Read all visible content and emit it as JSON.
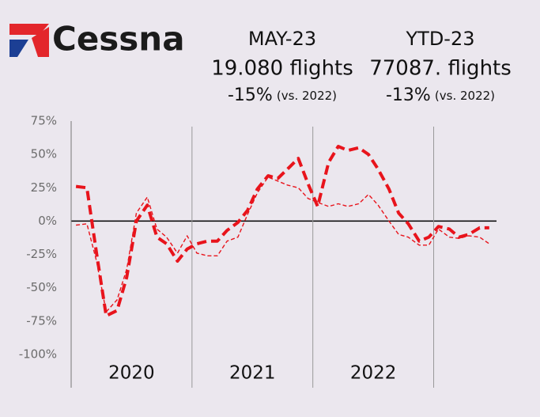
{
  "logo": "Cessna",
  "stats": [
    {
      "period": "MAY-23",
      "value": "19.080 flights",
      "change": "-15%",
      "note": "(vs. 2022)"
    },
    {
      "period": "YTD-23",
      "value": "77087. flights",
      "change": "-13%",
      "note": "(vs. 2022)"
    }
  ],
  "chart_data": {
    "type": "line",
    "categories": [
      "2020",
      "2021",
      "2022"
    ],
    "x": [
      2020.04,
      2020.13,
      2020.21,
      2020.29,
      2020.38,
      2020.46,
      2020.54,
      2020.63,
      2020.71,
      2020.79,
      2020.88,
      2020.96,
      2021.04,
      2021.13,
      2021.21,
      2021.29,
      2021.38,
      2021.46,
      2021.54,
      2021.63,
      2021.71,
      2021.79,
      2021.88,
      2021.96,
      2022.04,
      2022.13,
      2022.21,
      2022.29,
      2022.38,
      2022.46,
      2022.54,
      2022.63,
      2022.71,
      2022.79,
      2022.88,
      2022.96,
      2023.04,
      2023.13,
      2023.21,
      2023.29,
      2023.38,
      2023.46
    ],
    "series": [
      {
        "color": "#e8141c",
        "values": [
          26,
          25,
          -24,
          -71,
          -67,
          -42,
          0,
          12,
          -12,
          -17,
          -30,
          -21,
          -17,
          -15,
          -15,
          -7,
          -1,
          8,
          24,
          34,
          32,
          39,
          47,
          28,
          11,
          44,
          56,
          53,
          55,
          50,
          39,
          24,
          6,
          -2,
          -15,
          -12,
          -4,
          -6,
          -12,
          -10,
          -5,
          -5
        ]
      },
      {
        "color": "#e8141c",
        "values": [
          -3,
          -2,
          -30,
          -68,
          -59,
          -36,
          6,
          18,
          -6,
          -12,
          -24,
          -11,
          -24,
          -26,
          -26,
          -15,
          -12,
          5,
          21,
          33,
          30,
          27,
          25,
          17,
          14,
          11,
          13,
          11,
          13,
          20,
          12,
          0,
          -10,
          -12,
          -18,
          -18,
          -6,
          -12,
          -13,
          -11,
          -12,
          -17
        ]
      }
    ],
    "xlim": [
      2020,
      2023.52
    ],
    "xticks": [
      2020,
      2021,
      2022,
      2023
    ],
    "ylim": [
      -100,
      75
    ],
    "yticks": [
      {
        "value": 75,
        "label": "75%"
      },
      {
        "value": 50,
        "label": "50%"
      },
      {
        "value": 25,
        "label": "25%"
      },
      {
        "value": 0,
        "label": "0%"
      },
      {
        "value": -25,
        "label": "-25%"
      },
      {
        "value": -50,
        "label": "-50%"
      },
      {
        "value": -75,
        "label": "-75%"
      },
      {
        "value": -100,
        "label": "-100%"
      }
    ],
    "grid": true
  }
}
